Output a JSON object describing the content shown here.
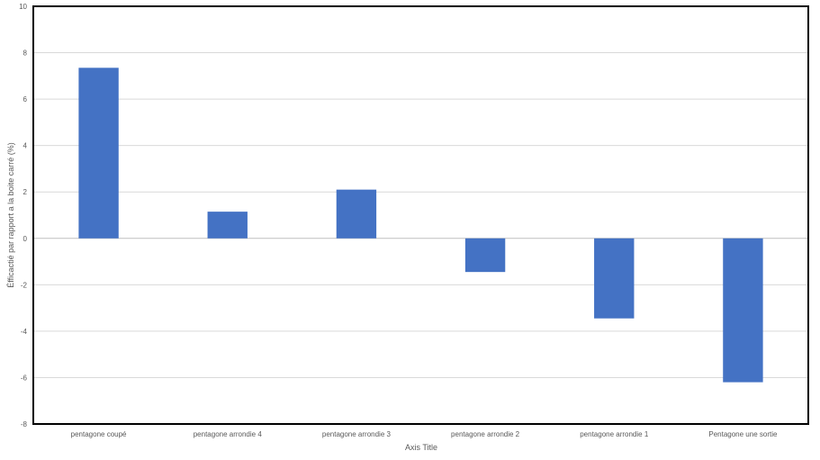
{
  "chart_data": {
    "type": "bar",
    "categories": [
      "pentagone coupé",
      "pentagone  arrondie 4",
      "pentagone arrondie 3",
      "pentagone arrondie 2",
      "pentagone arrondie 1",
      "Pentagone une sortie"
    ],
    "values": [
      7.35,
      1.15,
      2.1,
      -1.45,
      -3.45,
      -6.2
    ],
    "title": "",
    "xlabel": "Axis Title",
    "ylabel": "Éfficactié par rapport a la boite carré (%)",
    "ylim": [
      -8,
      10
    ],
    "yticks": [
      -8,
      -6,
      -4,
      -2,
      0,
      2,
      4,
      6,
      8,
      10
    ],
    "grid": true,
    "legend": "none",
    "colors": {
      "bar": "#4472C4",
      "grid": "#D9D9D9",
      "axis": "#BFBFBF",
      "frame": "#000000",
      "text": "#595959"
    }
  }
}
